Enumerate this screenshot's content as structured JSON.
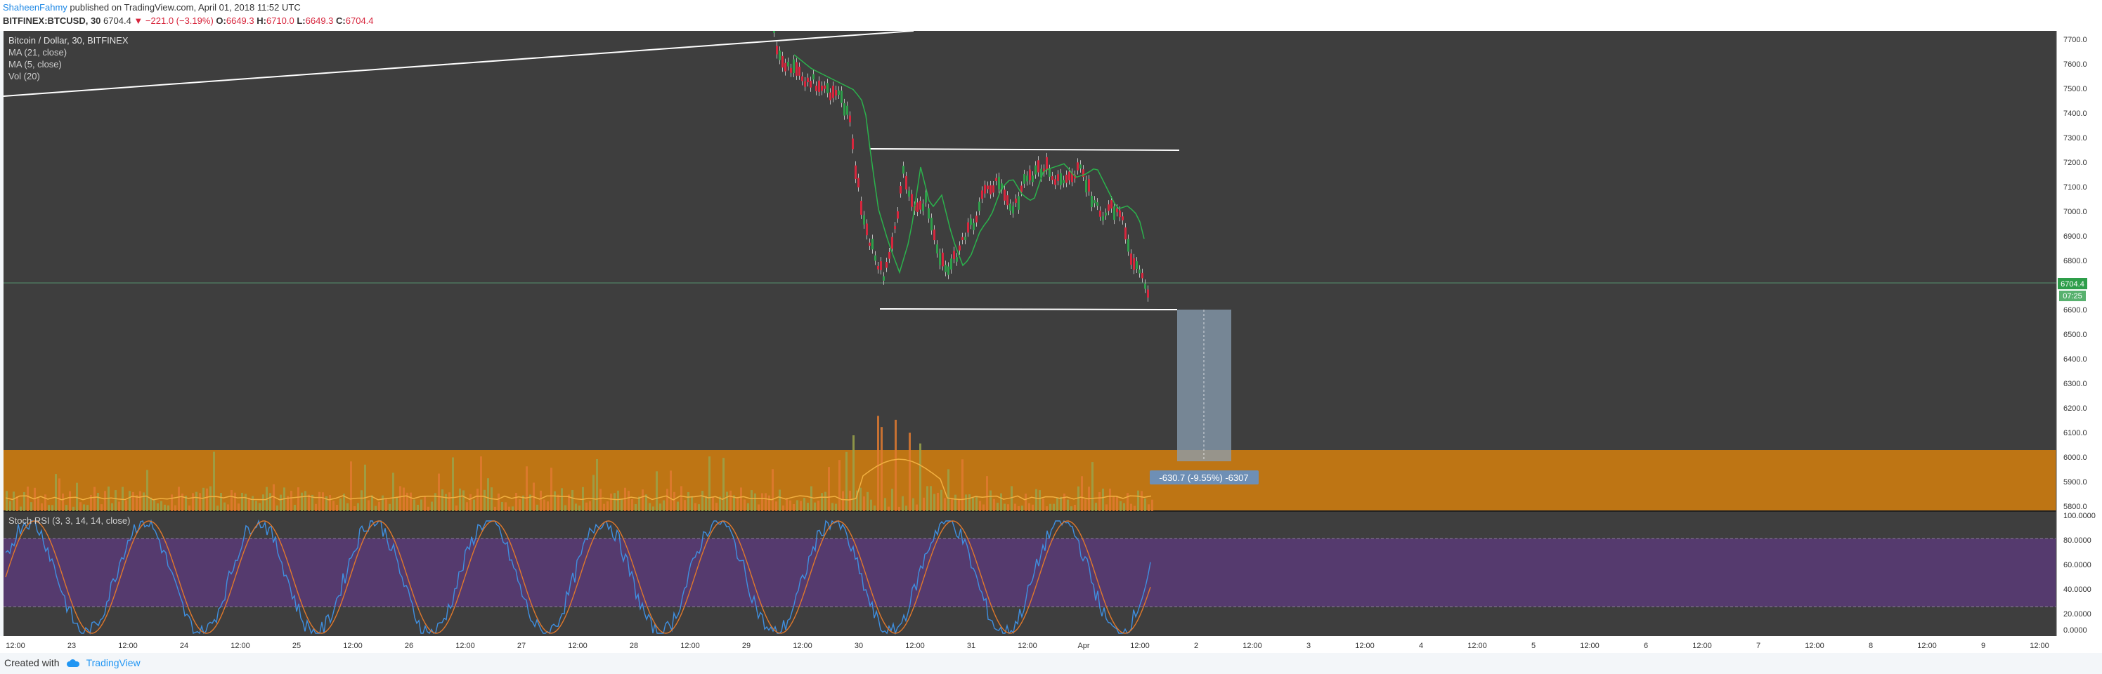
{
  "header": {
    "author": "ShaheenFahmy",
    "published": " published on TradingView.com, April 01, 2018 11:52 UTC",
    "symbol": "BITFINEX:BTCUSD, 30",
    "last": "6704.4",
    "down_arrow": "▼",
    "change": "−221.0 (−3.19%)",
    "o_label": "O:",
    "o": "6649.3",
    "h_label": "H:",
    "h": "6710.0",
    "l_label": "L:",
    "l": "6649.3",
    "c_label": "C:",
    "c": "6704.4"
  },
  "legend": {
    "title": "Bitcoin / Dollar, 30, BITFINEX",
    "ma21": "MA (21, close)",
    "ma5": "MA (5, close)",
    "vol": "Vol (20)",
    "stoch": "Stoch RSI (3, 3, 14, 14, close)"
  },
  "price_axis": [
    "7700.0",
    "7600.0",
    "7500.0",
    "7400.0",
    "7300.0",
    "7200.0",
    "7100.0",
    "7000.0",
    "6900.0",
    "6800.0",
    "6600.0",
    "6500.0",
    "6400.0",
    "6300.0",
    "6200.0",
    "6100.0",
    "6000.0",
    "5900.0",
    "5800.0"
  ],
  "price_tag": "6704.4",
  "time_tag": "07:25",
  "measure_label": "-630.7 (-9.55%) -6307",
  "rsi_axis": [
    "100.0000",
    "80.0000",
    "60.0000",
    "40.0000",
    "20.0000",
    "0.0000"
  ],
  "time_axis": [
    "12:00",
    "23",
    "12:00",
    "24",
    "12:00",
    "25",
    "12:00",
    "26",
    "12:00",
    "27",
    "12:00",
    "28",
    "12:00",
    "29",
    "12:00",
    "30",
    "12:00",
    "31",
    "12:00",
    "Apr",
    "12:00",
    "2",
    "12:00",
    "3",
    "12:00",
    "4",
    "12:00",
    "5",
    "12:00",
    "6",
    "12:00",
    "7",
    "12:00",
    "8",
    "12:00",
    "9",
    "12:00"
  ],
  "footer": {
    "created": "Created with",
    "brand": "TradingView"
  },
  "colors": {
    "bg": "#3c3c3c",
    "up": "#2e9e4a",
    "down": "#d7263d",
    "orange": "#d9820e",
    "purple": "#5a3a74",
    "ma": "#2bb24c"
  }
}
